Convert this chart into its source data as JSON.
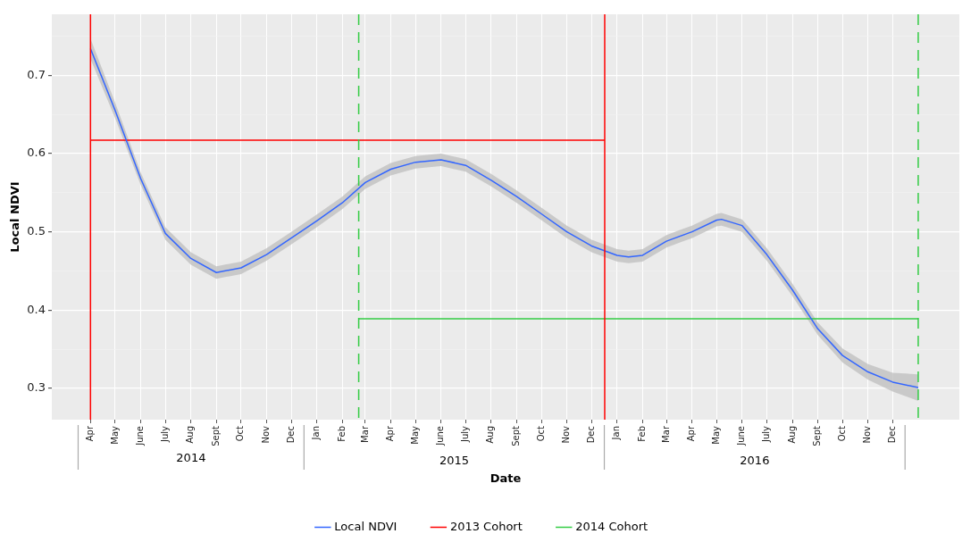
{
  "chart_data": {
    "type": "line",
    "xlabel": "Date",
    "ylabel": "Local NDVI",
    "xlim": [
      "2014-02-13",
      "2017-02-20"
    ],
    "ylim": [
      0.26,
      0.778
    ],
    "xticks": [
      {
        "value": "2014-04-01",
        "label": "Apr"
      },
      {
        "value": "2014-05-01",
        "label": "May"
      },
      {
        "value": "2014-06-01",
        "label": "June"
      },
      {
        "value": "2014-07-01",
        "label": "July"
      },
      {
        "value": "2014-08-01",
        "label": "Aug"
      },
      {
        "value": "2014-09-01",
        "label": "Sept"
      },
      {
        "value": "2014-10-01",
        "label": "Oct"
      },
      {
        "value": "2014-11-01",
        "label": "Nov"
      },
      {
        "value": "2014-12-01",
        "label": "Dec"
      },
      {
        "value": "2015-01-01",
        "label": "Jan"
      },
      {
        "value": "2015-02-01",
        "label": "Feb"
      },
      {
        "value": "2015-03-01",
        "label": "Mar"
      },
      {
        "value": "2015-04-01",
        "label": "Apr"
      },
      {
        "value": "2015-05-01",
        "label": "May"
      },
      {
        "value": "2015-06-01",
        "label": "June"
      },
      {
        "value": "2015-07-01",
        "label": "July"
      },
      {
        "value": "2015-08-01",
        "label": "Aug"
      },
      {
        "value": "2015-09-01",
        "label": "Sept"
      },
      {
        "value": "2015-10-01",
        "label": "Oct"
      },
      {
        "value": "2015-11-01",
        "label": "Nov"
      },
      {
        "value": "2015-12-01",
        "label": "Dec"
      },
      {
        "value": "2016-01-01",
        "label": "Jan"
      },
      {
        "value": "2016-02-01",
        "label": "Feb"
      },
      {
        "value": "2016-03-01",
        "label": "Mar"
      },
      {
        "value": "2016-04-01",
        "label": "Apr"
      },
      {
        "value": "2016-05-01",
        "label": "May"
      },
      {
        "value": "2016-06-01",
        "label": "June"
      },
      {
        "value": "2016-07-01",
        "label": "July"
      },
      {
        "value": "2016-08-01",
        "label": "Aug"
      },
      {
        "value": "2016-09-01",
        "label": "Sept"
      },
      {
        "value": "2016-10-01",
        "label": "Oct"
      },
      {
        "value": "2016-11-01",
        "label": "Nov"
      },
      {
        "value": "2016-12-01",
        "label": "Dec"
      }
    ],
    "yticks": [
      {
        "value": 0.3,
        "label": "0.3"
      },
      {
        "value": 0.35,
        "label": null
      },
      {
        "value": 0.4,
        "label": "0.4"
      },
      {
        "value": 0.45,
        "label": null
      },
      {
        "value": 0.5,
        "label": "0.5"
      },
      {
        "value": 0.55,
        "label": null
      },
      {
        "value": 0.6,
        "label": "0.6"
      },
      {
        "value": 0.65,
        "label": null
      },
      {
        "value": 0.7,
        "label": "0.7"
      },
      {
        "value": 0.75,
        "label": null
      }
    ],
    "grid": true,
    "legend": "bottom",
    "marker": "none",
    "series": [
      {
        "name": "Local NDVI",
        "color": "#3366ff",
        "x": [
          "2014-04-01",
          "2014-05-01",
          "2014-06-01",
          "2014-07-01",
          "2014-08-01",
          "2014-09-01",
          "2014-10-01",
          "2014-11-01",
          "2014-12-01",
          "2015-01-01",
          "2015-02-01",
          "2015-03-01",
          "2015-04-01",
          "2015-05-01",
          "2015-06-01",
          "2015-07-01",
          "2015-08-01",
          "2015-09-01",
          "2015-10-01",
          "2015-11-01",
          "2015-12-01",
          "2016-01-01",
          "2016-01-15",
          "2016-02-01",
          "2016-03-01",
          "2016-04-01",
          "2016-05-01",
          "2016-05-07",
          "2016-06-01",
          "2016-07-01",
          "2016-08-01",
          "2016-09-01",
          "2016-10-01",
          "2016-11-01",
          "2016-12-01",
          "2017-01-01"
        ],
        "values": [
          0.734,
          0.655,
          0.568,
          0.498,
          0.466,
          0.448,
          0.454,
          0.471,
          0.492,
          0.514,
          0.537,
          0.563,
          0.58,
          0.589,
          0.592,
          0.585,
          0.566,
          0.545,
          0.523,
          0.5,
          0.482,
          0.47,
          0.468,
          0.47,
          0.488,
          0.5,
          0.515,
          0.516,
          0.508,
          0.471,
          0.426,
          0.376,
          0.342,
          0.321,
          0.308,
          0.301
        ],
        "lower": [
          0.721,
          0.645,
          0.56,
          0.49,
          0.458,
          0.44,
          0.446,
          0.463,
          0.484,
          0.506,
          0.529,
          0.555,
          0.572,
          0.581,
          0.584,
          0.577,
          0.558,
          0.537,
          0.515,
          0.492,
          0.474,
          0.462,
          0.46,
          0.462,
          0.48,
          0.492,
          0.507,
          0.508,
          0.5,
          0.463,
          0.418,
          0.368,
          0.333,
          0.311,
          0.296,
          0.284
        ],
        "upper": [
          0.747,
          0.665,
          0.576,
          0.506,
          0.474,
          0.456,
          0.462,
          0.479,
          0.5,
          0.522,
          0.545,
          0.571,
          0.588,
          0.597,
          0.6,
          0.593,
          0.574,
          0.553,
          0.531,
          0.508,
          0.49,
          0.478,
          0.476,
          0.478,
          0.496,
          0.508,
          0.523,
          0.524,
          0.516,
          0.479,
          0.434,
          0.384,
          0.351,
          0.331,
          0.32,
          0.318
        ]
      },
      {
        "name": "2013 Cohort",
        "color": "#ff0000",
        "x": [
          "2014-04-01",
          "2015-12-17"
        ],
        "values": [
          0.617,
          0.617
        ]
      },
      {
        "name": "2014 Cohort",
        "color": "#33cc44",
        "x": [
          "2015-02-21",
          "2017-01-01"
        ],
        "values": [
          0.389,
          0.389
        ]
      }
    ],
    "ref_lines": [
      {
        "axis": "x",
        "value": "2014-04-01",
        "color": "#ff0000",
        "line_style": "solid"
      },
      {
        "axis": "x",
        "value": "2015-12-17",
        "color": "#ff0000",
        "line_style": "solid"
      },
      {
        "axis": "x",
        "value": "2015-02-21",
        "color": "#33cc44",
        "line_style": "dashed"
      },
      {
        "axis": "x",
        "value": "2017-01-01",
        "color": "#33cc44",
        "line_style": "dashed"
      }
    ],
    "annotations": [
      "2014",
      "2015",
      "2016"
    ]
  }
}
